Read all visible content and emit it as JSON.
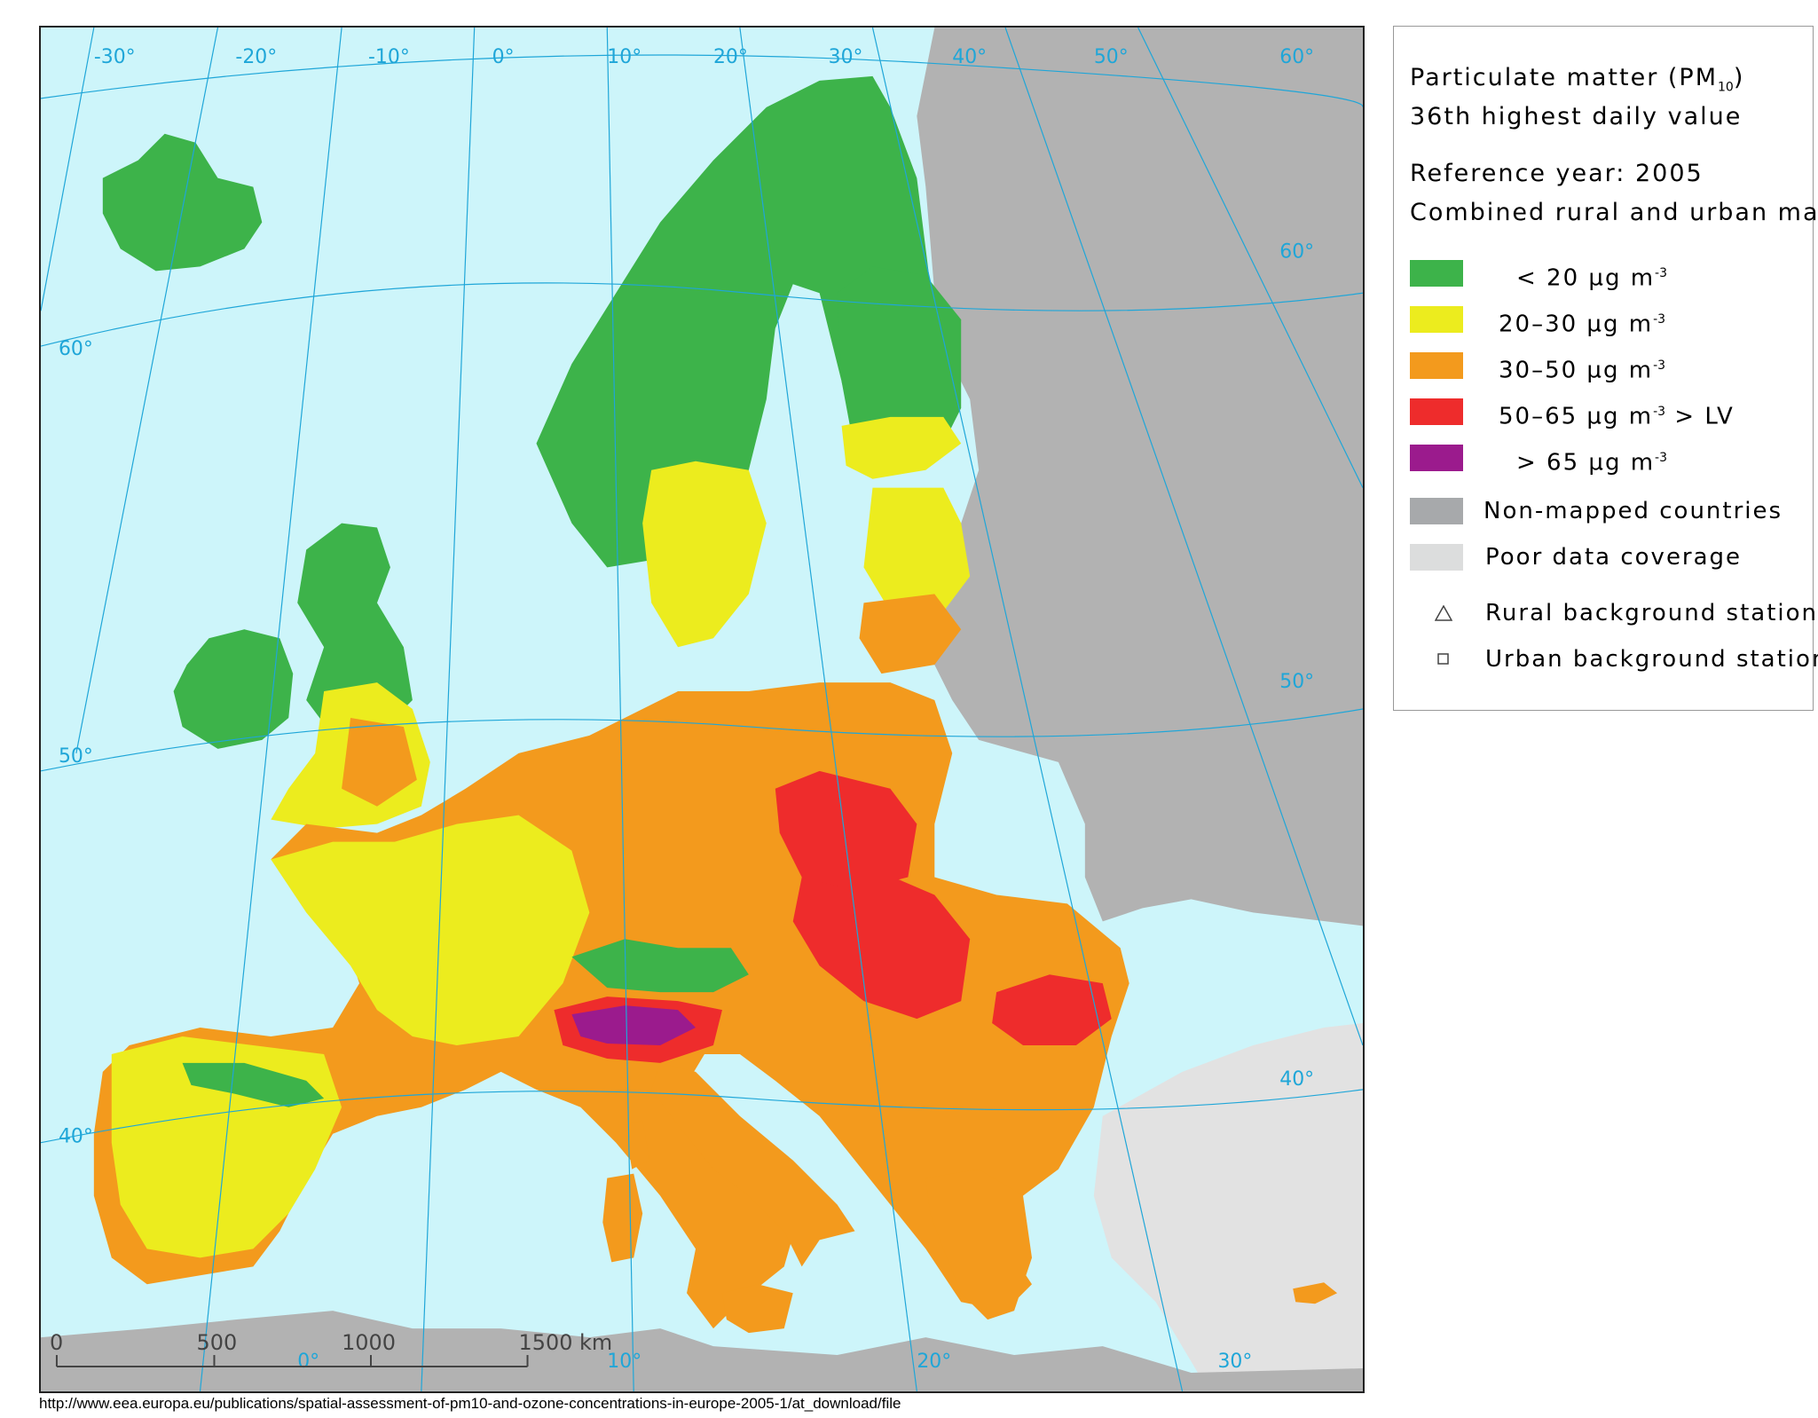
{
  "map": {
    "graticule": {
      "longitudes_top": [
        "-30°",
        "-20°",
        "-10°",
        "0°",
        "10°",
        "20°",
        "30°",
        "40°",
        "50°",
        "60°"
      ],
      "longitudes_bottom": [
        "0°",
        "10°",
        "20°",
        "30°"
      ],
      "latitudes_left": [
        "60°",
        "50°",
        "40°"
      ],
      "latitudes_right": [
        "60°",
        "50°",
        "40°"
      ]
    },
    "scale_bar": {
      "ticks": [
        "0",
        "500",
        "1000",
        "1500 km"
      ]
    },
    "colors": {
      "sea": "#cdf5fa",
      "non_mapped": "#b2b2b2",
      "poor_coverage": "#e2e2e2",
      "green": "#3db34a",
      "yellow": "#ecec1e",
      "orange": "#f39a1d",
      "red": "#ee2c2c",
      "purple": "#9b1b8d",
      "graticule": "#1fa6d8"
    }
  },
  "legend": {
    "title_line1": "Particulate matter (PM",
    "title_sub": "10",
    "title_close": ")",
    "title_line2": "36th highest daily value",
    "reference_year": "Reference year: 2005",
    "map_type": "Combined rural and urban map",
    "classes": [
      {
        "label": "< 20 µg m",
        "sup": "-3",
        "suffix": "",
        "color": "#3db34a"
      },
      {
        "label": "20–30 µg m",
        "sup": "-3",
        "suffix": "",
        "color": "#ecec1e"
      },
      {
        "label": "30–50 µg m",
        "sup": "-3",
        "suffix": "",
        "color": "#f39a1d"
      },
      {
        "label": "50–65 µg m",
        "sup": "-3",
        "suffix": " > LV",
        "color": "#ee2c2c"
      },
      {
        "label": "> 65 µg m",
        "sup": "-3",
        "suffix": "",
        "color": "#9b1b8d"
      }
    ],
    "non_mapped": {
      "label": "Non-mapped countries",
      "color": "#a7a9ab"
    },
    "poor_coverage": {
      "label": "Poor data coverage",
      "color": "#dcdddd"
    },
    "rural_station": {
      "label": "Rural background station",
      "icon": "triangle-outline-icon"
    },
    "urban_station": {
      "label": "Urban background station",
      "icon": "square-outline-icon"
    }
  },
  "footer": {
    "source_url": "http://www.eea.europa.eu/publications/spatial-assessment-of-pm10-and-ozone-concentrations-in-europe-2005-1/at_download/file"
  }
}
